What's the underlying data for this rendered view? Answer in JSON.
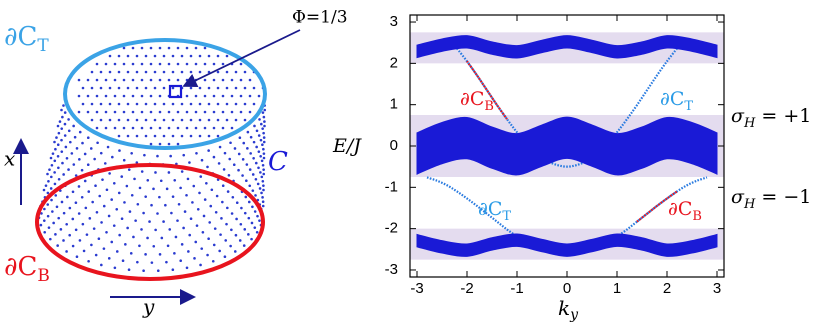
{
  "diagram": {
    "top_edge": {
      "base": "∂C",
      "sub": "T"
    },
    "bottom_edge": {
      "base": "∂C",
      "sub": "B"
    },
    "flux": "Φ=1/3",
    "x_axis": "x",
    "y_axis": "y",
    "surface": "C"
  },
  "chart_data": {
    "type": "band",
    "xlabel": {
      "base": "k",
      "sub": "y"
    },
    "ylabel": "E/J",
    "xlim": [
      -3.14,
      3.14
    ],
    "ylim": [
      -3.17,
      3.17
    ],
    "xticks": [
      -3,
      -2,
      -1,
      0,
      1,
      2,
      3
    ],
    "yticks": [
      -3,
      -2,
      -1,
      0,
      1,
      2,
      3
    ],
    "shaded": {
      "color": "#e4dcef",
      "ranges": [
        [
          2.0,
          2.75
        ],
        [
          -0.75,
          0.75
        ],
        [
          -2.75,
          -2.0
        ]
      ]
    },
    "band_x": [
      -3,
      -2.5,
      -2,
      -1.5,
      -1,
      -0.5,
      0,
      0.5,
      1,
      1.5,
      2,
      2.5,
      3
    ],
    "bands": [
      {
        "color": "#1a1ad6",
        "upper": [
          2.44,
          2.59,
          2.67,
          2.52,
          2.43,
          2.56,
          2.67,
          2.56,
          2.43,
          2.52,
          2.67,
          2.59,
          2.44
        ],
        "lower": [
          2.14,
          2.29,
          2.37,
          2.22,
          2.13,
          2.26,
          2.37,
          2.26,
          2.13,
          2.22,
          2.37,
          2.29,
          2.14
        ]
      },
      {
        "color": "#1a1ad6",
        "upper": [
          0.32,
          0.57,
          0.69,
          0.46,
          0.3,
          0.51,
          0.7,
          0.51,
          0.3,
          0.46,
          0.69,
          0.57,
          0.32
        ],
        "lower": [
          -0.68,
          -0.43,
          -0.31,
          -0.54,
          -0.7,
          -0.49,
          -0.3,
          -0.49,
          -0.7,
          -0.54,
          -0.31,
          -0.43,
          -0.68
        ]
      },
      {
        "color": "#1a1ad6",
        "upper": [
          -2.14,
          -2.29,
          -2.37,
          -2.22,
          -2.13,
          -2.26,
          -2.37,
          -2.26,
          -2.13,
          -2.22,
          -2.37,
          -2.29,
          -2.14
        ],
        "lower": [
          -2.44,
          -2.59,
          -2.67,
          -2.52,
          -2.43,
          -2.56,
          -2.67,
          -2.56,
          -2.43,
          -2.52,
          -2.67,
          -2.59,
          -2.44
        ]
      }
    ],
    "edges": [
      {
        "color": "#2a7be0",
        "x": [
          -2.2,
          -2.0,
          -1.8,
          -1.6,
          -1.4,
          -1.2,
          -1.0,
          -0.8,
          -0.6,
          -0.4,
          -0.2,
          0,
          0.2,
          0.4,
          0.6,
          0.8,
          1.0,
          1.2,
          1.4,
          1.6,
          1.8,
          2.0,
          2.2
        ],
        "values": [
          2.36,
          2.05,
          1.71,
          1.35,
          0.99,
          0.65,
          0.33,
          0.05,
          -0.19,
          -0.36,
          -0.46,
          -0.5,
          -0.46,
          -0.36,
          -0.19,
          0.05,
          0.33,
          0.65,
          0.99,
          1.35,
          1.71,
          2.05,
          2.36
        ]
      },
      {
        "color": "#e8141e",
        "x": [
          -2.0,
          -1.8,
          -1.6,
          -1.4,
          -1.2
        ],
        "values": [
          2.05,
          1.71,
          1.35,
          0.99,
          0.65
        ]
      },
      {
        "color": "#2a7be0",
        "x": [
          -2.8,
          -2.6,
          -2.4,
          -2.2,
          -2.0,
          -1.8,
          -1.6,
          -1.4,
          -1.2,
          -1.0,
          -0.8,
          -0.6,
          -0.4,
          -0.2,
          0,
          0.2,
          0.4,
          0.6,
          0.8,
          1.0,
          1.2,
          1.4,
          1.6,
          1.8,
          2.0,
          2.2,
          2.4,
          2.6,
          2.8
        ],
        "values": [
          -0.76,
          -0.84,
          -0.95,
          -1.1,
          -1.27,
          -1.45,
          -1.64,
          -1.83,
          -2.02,
          -2.19,
          -2.35,
          -2.47,
          -2.56,
          -2.62,
          -2.64,
          -2.62,
          -2.56,
          -2.47,
          -2.35,
          -2.19,
          -2.02,
          -1.83,
          -1.64,
          -1.45,
          -1.27,
          -1.1,
          -0.95,
          -0.84,
          -0.76
        ]
      },
      {
        "color": "#e8141e",
        "x": [
          1.4,
          1.6,
          1.8,
          2.0,
          2.2
        ],
        "values": [
          -1.83,
          -1.64,
          -1.45,
          -1.27,
          -1.1
        ]
      }
    ],
    "annotations": [
      {
        "base": "∂C",
        "sub": "B",
        "color": "#e8141e"
      },
      {
        "base": "∂C",
        "sub": "T",
        "color": "#2a9be6"
      },
      {
        "base": "∂C",
        "sub": "T",
        "color": "#2a9be6"
      },
      {
        "base": "∂C",
        "sub": "B",
        "color": "#e8141e"
      }
    ],
    "side_labels": [
      {
        "base": "σ",
        "sub": "H",
        "tail": " = +1"
      },
      {
        "base": "σ",
        "sub": "H",
        "tail": " = −1"
      }
    ]
  }
}
